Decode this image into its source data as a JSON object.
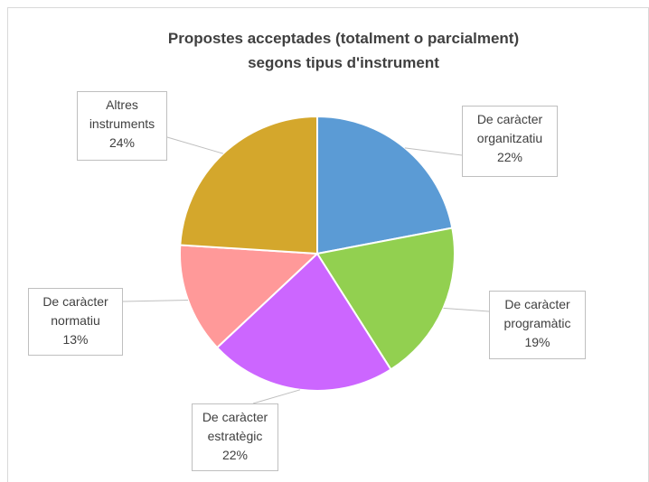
{
  "chart_data": {
    "type": "pie",
    "title": [
      "Propostes acceptades (totalment o parcialment)",
      "segons tipus d'instrument"
    ],
    "categories": [
      "De caràcter organitzatiu",
      "De caràcter programàtic",
      "De caràcter estratègic",
      "De caràcter normatiu",
      "Altres instruments"
    ],
    "values": [
      22,
      19,
      22,
      13,
      24
    ],
    "value_labels": [
      "22%",
      "19%",
      "22%",
      "13%",
      "24%"
    ],
    "colors": [
      "#5b9bd5",
      "#92d050",
      "#cc66ff",
      "#ff9999",
      "#d4a72c"
    ]
  }
}
